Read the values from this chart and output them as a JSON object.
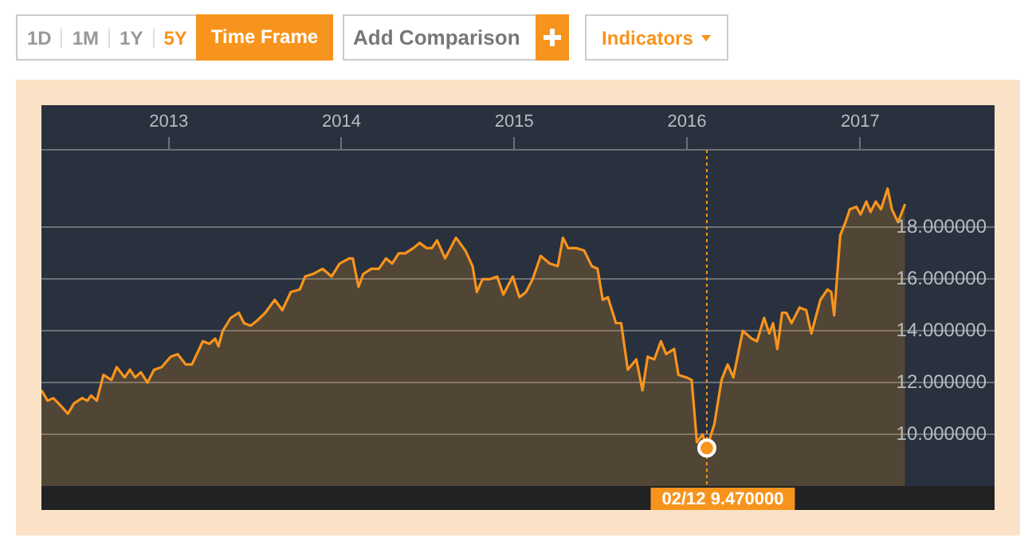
{
  "chart_data": {
    "type": "area",
    "color": "#f7941d",
    "x": [
      "2012-04-07",
      "2012-04-20",
      "2012-05-02",
      "2012-05-13",
      "2012-06-02",
      "2012-06-15",
      "2012-07-02",
      "2012-07-13",
      "2012-07-21",
      "2012-08-02",
      "2012-08-16",
      "2012-09-02",
      "2012-09-13",
      "2012-09-30",
      "2012-10-11",
      "2012-10-22",
      "2012-11-03",
      "2012-11-17",
      "2012-12-01",
      "2012-12-17",
      "2013-01-05",
      "2013-01-20",
      "2013-02-06",
      "2013-02-19",
      "2013-03-14",
      "2013-03-28",
      "2013-04-09",
      "2013-04-16",
      "2013-04-25",
      "2013-05-12",
      "2013-05-29",
      "2013-06-09",
      "2013-06-23",
      "2013-07-07",
      "2013-07-24",
      "2013-08-13",
      "2013-08-29",
      "2013-09-16",
      "2013-10-05",
      "2013-10-16",
      "2013-11-02",
      "2013-11-22",
      "2013-12-11",
      "2013-12-28",
      "2014-01-17",
      "2014-01-25",
      "2014-02-06",
      "2014-02-16",
      "2014-03-05",
      "2014-03-21",
      "2014-04-05",
      "2014-04-18",
      "2014-05-02",
      "2014-05-16",
      "2014-06-02",
      "2014-06-15",
      "2014-06-30",
      "2014-07-11",
      "2014-07-22",
      "2014-08-08",
      "2014-08-31",
      "2014-09-20",
      "2014-10-05",
      "2014-10-14",
      "2014-10-26",
      "2014-11-11",
      "2014-11-26",
      "2014-12-09",
      "2014-12-29",
      "2015-01-12",
      "2015-01-26",
      "2015-02-09",
      "2015-02-26",
      "2015-03-17",
      "2015-04-03",
      "2015-04-14",
      "2015-04-25",
      "2015-05-12",
      "2015-05-29",
      "2015-06-14",
      "2015-06-26",
      "2015-07-07",
      "2015-07-18",
      "2015-08-04",
      "2015-08-15",
      "2015-08-29",
      "2015-09-16",
      "2015-09-29",
      "2015-10-10",
      "2015-10-24",
      "2015-11-07",
      "2015-11-18",
      "2015-12-05",
      "2015-12-14",
      "2015-12-31",
      "2016-01-11",
      "2016-01-22",
      "2016-02-03",
      "2016-02-12",
      "2016-02-28",
      "2016-03-14",
      "2016-03-27",
      "2016-04-08",
      "2016-04-28",
      "2016-05-17",
      "2016-05-28",
      "2016-06-12",
      "2016-06-23",
      "2016-07-01",
      "2016-07-10",
      "2016-07-20",
      "2016-07-29",
      "2016-08-09",
      "2016-08-26",
      "2016-09-09",
      "2016-09-20",
      "2016-10-09",
      "2016-10-24",
      "2016-11-01",
      "2016-11-07",
      "2016-11-20",
      "2016-12-01",
      "2016-12-10",
      "2016-12-24",
      "2017-01-02",
      "2017-01-14",
      "2017-01-23",
      "2017-02-03",
      "2017-02-14",
      "2017-02-28",
      "2017-03-09",
      "2017-03-22",
      "2017-04-06"
    ],
    "values": [
      11.7,
      11.3,
      11.4,
      11.2,
      10.8,
      11.2,
      11.4,
      11.3,
      11.5,
      11.3,
      12.3,
      12.1,
      12.6,
      12.2,
      12.5,
      12.2,
      12.4,
      12.0,
      12.5,
      12.6,
      13.0,
      13.1,
      12.7,
      12.7,
      13.6,
      13.5,
      13.7,
      13.4,
      14.0,
      14.5,
      14.7,
      14.3,
      14.2,
      14.4,
      14.7,
      15.2,
      14.8,
      15.5,
      15.6,
      16.1,
      16.2,
      16.4,
      16.1,
      16.6,
      16.8,
      16.8,
      15.7,
      16.2,
      16.4,
      16.4,
      16.8,
      16.6,
      17.0,
      17.0,
      17.2,
      17.4,
      17.2,
      17.2,
      17.5,
      16.8,
      17.6,
      17.1,
      16.5,
      15.5,
      16.0,
      16.0,
      16.1,
      15.4,
      16.1,
      15.3,
      15.5,
      16.0,
      16.9,
      16.6,
      16.5,
      17.6,
      17.2,
      17.2,
      17.1,
      16.5,
      16.4,
      15.2,
      15.3,
      14.3,
      14.3,
      12.5,
      12.9,
      11.7,
      13.0,
      12.9,
      13.6,
      13.1,
      13.3,
      12.3,
      12.2,
      12.1,
      9.7,
      10.0,
      9.47,
      10.4,
      12.1,
      12.7,
      12.2,
      14.0,
      13.7,
      13.6,
      14.5,
      13.9,
      14.3,
      13.3,
      14.7,
      14.7,
      14.3,
      14.9,
      14.8,
      13.9,
      15.2,
      15.6,
      15.5,
      14.6,
      17.7,
      18.2,
      18.7,
      18.8,
      18.5,
      19.0,
      18.6,
      19.0,
      18.7,
      19.5,
      18.7,
      18.2,
      18.9
    ],
    "xlim": [
      "2012-04-07",
      "2017-10-12"
    ],
    "xticks": [
      "2013",
      "2014",
      "2015",
      "2016",
      "2017"
    ],
    "ylim": [
      8,
      21
    ],
    "yticks": [
      {
        "value": 10,
        "label": "10.000000"
      },
      {
        "value": 12,
        "label": "12.000000"
      },
      {
        "value": 14,
        "label": "14.000000"
      },
      {
        "value": 16,
        "label": "16.000000"
      },
      {
        "value": 18,
        "label": "18.000000"
      }
    ],
    "grid": "y",
    "legend": false,
    "marker": "none",
    "ref_lines": [
      {
        "axis": "x",
        "value": "2016-02-12",
        "color": "#f7941d",
        "line_style": "dotted"
      }
    ],
    "annotations": [
      "1D",
      "1M",
      "1Y",
      "5Y",
      "Time Frame",
      "Add Comparison",
      "Indicators",
      {
        "text": "02/12 9.470000",
        "x": "2016-02-12",
        "y": 9.47
      }
    ]
  }
}
